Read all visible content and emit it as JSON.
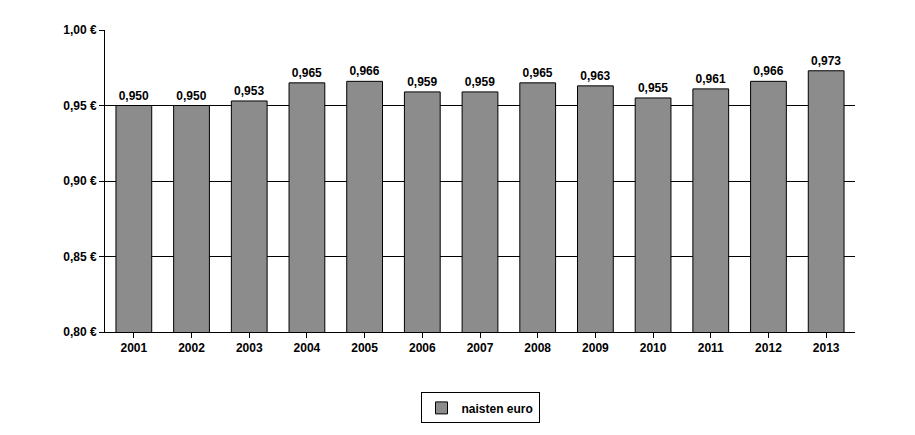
{
  "chart_data": {
    "type": "bar",
    "categories": [
      "2001",
      "2002",
      "2003",
      "2004",
      "2005",
      "2006",
      "2007",
      "2008",
      "2009",
      "2010",
      "2011",
      "2012",
      "2013"
    ],
    "series": [
      {
        "name": "naisten euro",
        "color": "#8c8c8c",
        "values": [
          0.95,
          0.95,
          0.953,
          0.965,
          0.966,
          0.959,
          0.959,
          0.965,
          0.963,
          0.955,
          0.961,
          0.966,
          0.973
        ],
        "value_labels": [
          "0,950",
          "0,950",
          "0,953",
          "0,965",
          "0,966",
          "0,959",
          "0,959",
          "0,965",
          "0,963",
          "0,955",
          "0,961",
          "0,966",
          "0,973"
        ]
      }
    ],
    "ylim": [
      0.8,
      1.0
    ],
    "yticks": [
      {
        "value": 0.8,
        "label": "0,80 €"
      },
      {
        "value": 0.85,
        "label": "0,85 €"
      },
      {
        "value": 0.9,
        "label": "0,90 €"
      },
      {
        "value": 0.95,
        "label": "0,95 €"
      },
      {
        "value": 1.0,
        "label": "1,00 €"
      }
    ],
    "grid": true,
    "data_labels": true,
    "legend": "bottom"
  }
}
